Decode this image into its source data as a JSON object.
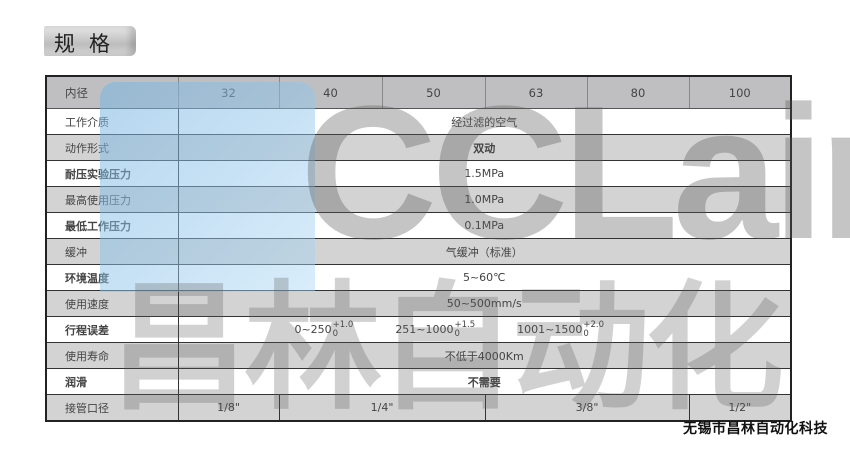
{
  "title": "规格",
  "watermark": {
    "logo_text": "CCLair",
    "logo_cn": "昌林自动化"
  },
  "table": {
    "header": {
      "label": "内径",
      "bores": [
        "32",
        "40",
        "50",
        "63",
        "80",
        "100"
      ]
    },
    "rows": [
      {
        "label": "工作介质",
        "value": "经过滤的空气"
      },
      {
        "label": "动作形式",
        "value": "双动"
      },
      {
        "label": "耐压实验压力",
        "value": "1.5MPa"
      },
      {
        "label": "最高使用压力",
        "value": "1.0MPa"
      },
      {
        "label": "最低工作压力",
        "value": "0.1MPa"
      },
      {
        "label": "缓冲",
        "value": "气缓冲（标准）"
      },
      {
        "label": "环境温度",
        "value": "5~60℃"
      },
      {
        "label": "使用速度",
        "value": "50~500mm/s"
      },
      {
        "label": "行程误差",
        "tolerances": [
          {
            "range": "0~250",
            "upper": "+1.0",
            "lower": "0"
          },
          {
            "range": "251~1000",
            "upper": "+1.5",
            "lower": "0"
          },
          {
            "range": "1001~1500",
            "upper": "+2.0",
            "lower": "0"
          }
        ]
      },
      {
        "label": "使用寿命",
        "value": "不低于4000Km"
      },
      {
        "label": "润滑",
        "value": "不需要"
      },
      {
        "label": "接管口径",
        "ports": [
          "1/8\"",
          "1/4\"",
          "3/8\"",
          "1/2\""
        ]
      }
    ]
  },
  "footer": "无锡市昌林自动化科技"
}
